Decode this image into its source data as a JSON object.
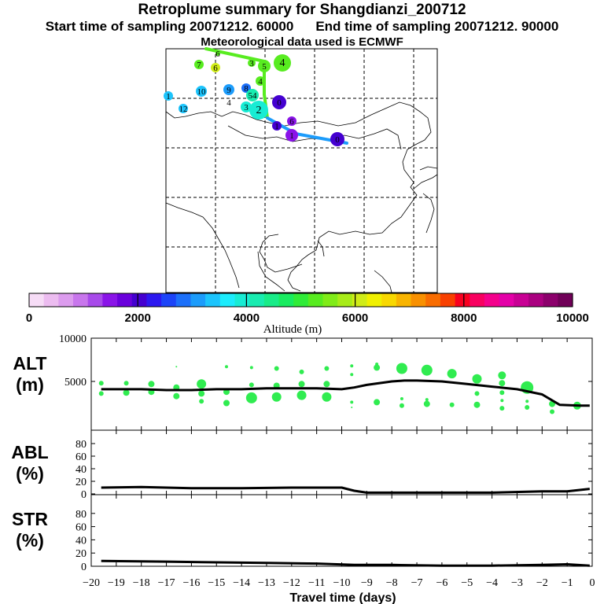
{
  "header": {
    "title": "Retroplume summary for Shangdianzi_200712",
    "start_label": "Start time of sampling 20071212. 60000",
    "end_label": "End time of sampling 20071212. 90000",
    "met_label": "Meteorological data used is ECMWF"
  },
  "colorbar": {
    "label": "Altitude (m)",
    "ticks": [
      "0",
      "2000",
      "4000",
      "6000",
      "8000",
      "10000"
    ],
    "colors": [
      "#f6dcf6",
      "#ecbcf0",
      "#dc9cee",
      "#c876ec",
      "#a84aea",
      "#8a14e8",
      "#6a00dc",
      "#4400d0",
      "#2c18f0",
      "#1c44f8",
      "#1c70fa",
      "#1c9cfb",
      "#1cc4fc",
      "#1cecfc",
      "#18ecd4",
      "#18ecb0",
      "#18ec88",
      "#18ec60",
      "#30ec38",
      "#58ec20",
      "#80ec18",
      "#a8ec18",
      "#d0ec18",
      "#f0f000",
      "#f8d800",
      "#f8b400",
      "#f89000",
      "#f86c00",
      "#f84000",
      "#f80020",
      "#f80060",
      "#f4008c",
      "#e400a8",
      "#c80094",
      "#aa0080",
      "#8c006c",
      "#700058"
    ]
  },
  "map": {
    "labels": [
      {
        "t": "6",
        "c": "#58ec20",
        "r": 3
      },
      {
        "t": "7",
        "c": "#58ec20",
        "r": 6
      },
      {
        "t": "6",
        "c": "#d0ec18",
        "r": 6
      },
      {
        "t": "5",
        "c": "#58ec20",
        "r": 8
      },
      {
        "t": "4",
        "c": "#58ec20",
        "r": 11
      },
      {
        "t": "4",
        "c": "#58ec20",
        "r": 6
      },
      {
        "t": "3",
        "c": "#58ec20",
        "r": 5
      },
      {
        "t": "1",
        "c": "#1cc4fc",
        "r": 6
      },
      {
        "t": "10",
        "c": "#1cc4fc",
        "r": 7
      },
      {
        "t": "9",
        "c": "#1c9cfb",
        "r": 7
      },
      {
        "t": "8",
        "c": "#1c70fa",
        "r": 6
      },
      {
        "t": "54",
        "c": "#18ecb0",
        "r": 8
      },
      {
        "t": "4",
        "c": "#1cc4fc",
        "r": 0
      },
      {
        "t": "3",
        "c": "#18ecd4",
        "r": 7
      },
      {
        "t": "12",
        "c": "#1cc4fc",
        "r": 6
      },
      {
        "t": "2",
        "c": "#18ecd4",
        "r": 12
      },
      {
        "t": "0",
        "c": "#4400d0",
        "r": 9
      },
      {
        "t": "6",
        "c": "#8a14e8",
        "r": 6
      },
      {
        "t": "1",
        "c": "#8a14e8",
        "r": 8
      },
      {
        "t": "0",
        "c": "#4400d0",
        "r": 9
      },
      {
        "t": "1",
        "c": "#4400d0",
        "r": 6
      }
    ],
    "track": [
      {
        "c": "#58ec20"
      },
      {
        "c": "#58ec20"
      },
      {
        "c": "#58ec20"
      },
      {
        "c": "#1c9cfb"
      },
      {
        "c": "#1c9cfb"
      },
      {
        "c": "#4400d0"
      }
    ]
  },
  "chart_data": {
    "type": "scatter",
    "x_ticks": [
      "−20",
      "−19",
      "−18",
      "−17",
      "−16",
      "−15",
      "−14",
      "−13",
      "−12",
      "−11",
      "−10",
      "−9",
      "−8",
      "−7",
      "−6",
      "−5",
      "−4",
      "−3",
      "−2",
      "−1",
      "0"
    ],
    "xlabel": "Travel time (days)",
    "xlim": [
      -20,
      0
    ],
    "panels": [
      {
        "label": "ALT",
        "unit": "(m)",
        "ylim": [
          0,
          10000
        ],
        "y_ticks": [
          {
            "v": 10000,
            "t": "10000"
          },
          {
            "v": 5000,
            "t": "5000"
          }
        ],
        "line": {
          "x": [
            -19.6,
            -19,
            -18,
            -17,
            -16,
            -15,
            -14,
            -13,
            -12,
            -11,
            -10,
            -9.5,
            -9,
            -8,
            -7.5,
            -7,
            -6,
            -5,
            -4,
            -3,
            -2,
            -1.3,
            -0.5,
            -0.1
          ],
          "y": [
            4100,
            4100,
            4100,
            4000,
            4000,
            4100,
            4100,
            4200,
            4200,
            4200,
            4100,
            4300,
            4600,
            5000,
            5100,
            5100,
            5000,
            4700,
            4400,
            4100,
            3500,
            2300,
            2200,
            2200
          ]
        },
        "dots": [
          {
            "x": -19.6,
            "y": 4800,
            "s": 3
          },
          {
            "x": -19.6,
            "y": 3600,
            "s": 3
          },
          {
            "x": -18.6,
            "y": 4800,
            "s": 3
          },
          {
            "x": -18.6,
            "y": 3700,
            "s": 4
          },
          {
            "x": -17.6,
            "y": 4700,
            "s": 4
          },
          {
            "x": -17.6,
            "y": 3800,
            "s": 4
          },
          {
            "x": -16.6,
            "y": 6700,
            "s": 1
          },
          {
            "x": -16.6,
            "y": 4300,
            "s": 4
          },
          {
            "x": -16.6,
            "y": 3300,
            "s": 4
          },
          {
            "x": -15.6,
            "y": 4700,
            "s": 6
          },
          {
            "x": -15.6,
            "y": 3600,
            "s": 4
          },
          {
            "x": -15.6,
            "y": 2700,
            "s": 3
          },
          {
            "x": -14.6,
            "y": 6700,
            "s": 2
          },
          {
            "x": -14.6,
            "y": 3800,
            "s": 4
          },
          {
            "x": -14.6,
            "y": 2500,
            "s": 4
          },
          {
            "x": -13.6,
            "y": 6600,
            "s": 2
          },
          {
            "x": -13.6,
            "y": 4600,
            "s": 3
          },
          {
            "x": -13.6,
            "y": 3100,
            "s": 7
          },
          {
            "x": -12.6,
            "y": 6500,
            "s": 3
          },
          {
            "x": -12.6,
            "y": 4500,
            "s": 4
          },
          {
            "x": -12.6,
            "y": 3200,
            "s": 6
          },
          {
            "x": -11.6,
            "y": 6100,
            "s": 3
          },
          {
            "x": -11.6,
            "y": 4700,
            "s": 4
          },
          {
            "x": -11.6,
            "y": 3400,
            "s": 6
          },
          {
            "x": -10.6,
            "y": 6500,
            "s": 3
          },
          {
            "x": -10.6,
            "y": 4700,
            "s": 4
          },
          {
            "x": -10.6,
            "y": 3200,
            "s": 6
          },
          {
            "x": -9.6,
            "y": 6800,
            "s": 2
          },
          {
            "x": -9.6,
            "y": 5800,
            "s": 2
          },
          {
            "x": -9.6,
            "y": 2600,
            "s": 2
          },
          {
            "x": -9.6,
            "y": 2000,
            "s": 1
          },
          {
            "x": -8.6,
            "y": 6600,
            "s": 4
          },
          {
            "x": -8.6,
            "y": 7000,
            "s": 2
          },
          {
            "x": -8.6,
            "y": 2600,
            "s": 4
          },
          {
            "x": -7.6,
            "y": 6500,
            "s": 7
          },
          {
            "x": -7.6,
            "y": 3000,
            "s": 2
          },
          {
            "x": -7.6,
            "y": 2200,
            "s": 3
          },
          {
            "x": -6.6,
            "y": 6300,
            "s": 7
          },
          {
            "x": -6.6,
            "y": 2900,
            "s": 2
          },
          {
            "x": -6.6,
            "y": 2400,
            "s": 4
          },
          {
            "x": -5.6,
            "y": 5900,
            "s": 6
          },
          {
            "x": -5.6,
            "y": 2300,
            "s": 3
          },
          {
            "x": -4.6,
            "y": 5300,
            "s": 6
          },
          {
            "x": -4.6,
            "y": 3600,
            "s": 3
          },
          {
            "x": -4.6,
            "y": 2300,
            "s": 4
          },
          {
            "x": -3.6,
            "y": 5700,
            "s": 5
          },
          {
            "x": -3.6,
            "y": 4800,
            "s": 4
          },
          {
            "x": -3.6,
            "y": 3700,
            "s": 3
          },
          {
            "x": -3.6,
            "y": 2800,
            "s": 2
          },
          {
            "x": -3.6,
            "y": 1900,
            "s": 3
          },
          {
            "x": -2.6,
            "y": 4300,
            "s": 8
          },
          {
            "x": -2.6,
            "y": 2700,
            "s": 2
          },
          {
            "x": -2.6,
            "y": 2000,
            "s": 3
          },
          {
            "x": -1.6,
            "y": 2400,
            "s": 4
          },
          {
            "x": -1.6,
            "y": 1500,
            "s": 3
          },
          {
            "x": -0.6,
            "y": 2200,
            "s": 5
          }
        ]
      },
      {
        "label": "ABL",
        "unit": "(%)",
        "ylim": [
          0,
          100
        ],
        "y_ticks": [
          {
            "v": 80,
            "t": "80"
          },
          {
            "v": 60,
            "t": "60"
          },
          {
            "v": 40,
            "t": "40"
          },
          {
            "v": 20,
            "t": "20"
          },
          {
            "v": 0,
            "t": "0"
          }
        ],
        "line": {
          "x": [
            -19.6,
            -18,
            -16,
            -14,
            -12,
            -10,
            -9.5,
            -9,
            -8,
            -6,
            -4,
            -2,
            -1,
            -0.1
          ],
          "y": [
            10,
            11,
            9,
            9,
            10,
            10,
            5,
            2,
            2,
            2,
            2,
            4,
            4,
            8
          ]
        }
      },
      {
        "label": "STR",
        "unit": "(%)",
        "ylim": [
          0,
          100
        ],
        "y_ticks": [
          {
            "v": 80,
            "t": "80"
          },
          {
            "v": 60,
            "t": "60"
          },
          {
            "v": 40,
            "t": "40"
          },
          {
            "v": 20,
            "t": "20"
          },
          {
            "v": 0,
            "t": "0"
          }
        ],
        "line": {
          "x": [
            -19.6,
            -17,
            -15,
            -13,
            -11,
            -9.5,
            -8,
            -6,
            -4,
            -2,
            -1,
            -0.1
          ],
          "y": [
            8,
            7,
            6,
            5,
            4,
            2,
            2,
            1,
            1,
            2,
            3,
            1
          ]
        }
      }
    ]
  }
}
